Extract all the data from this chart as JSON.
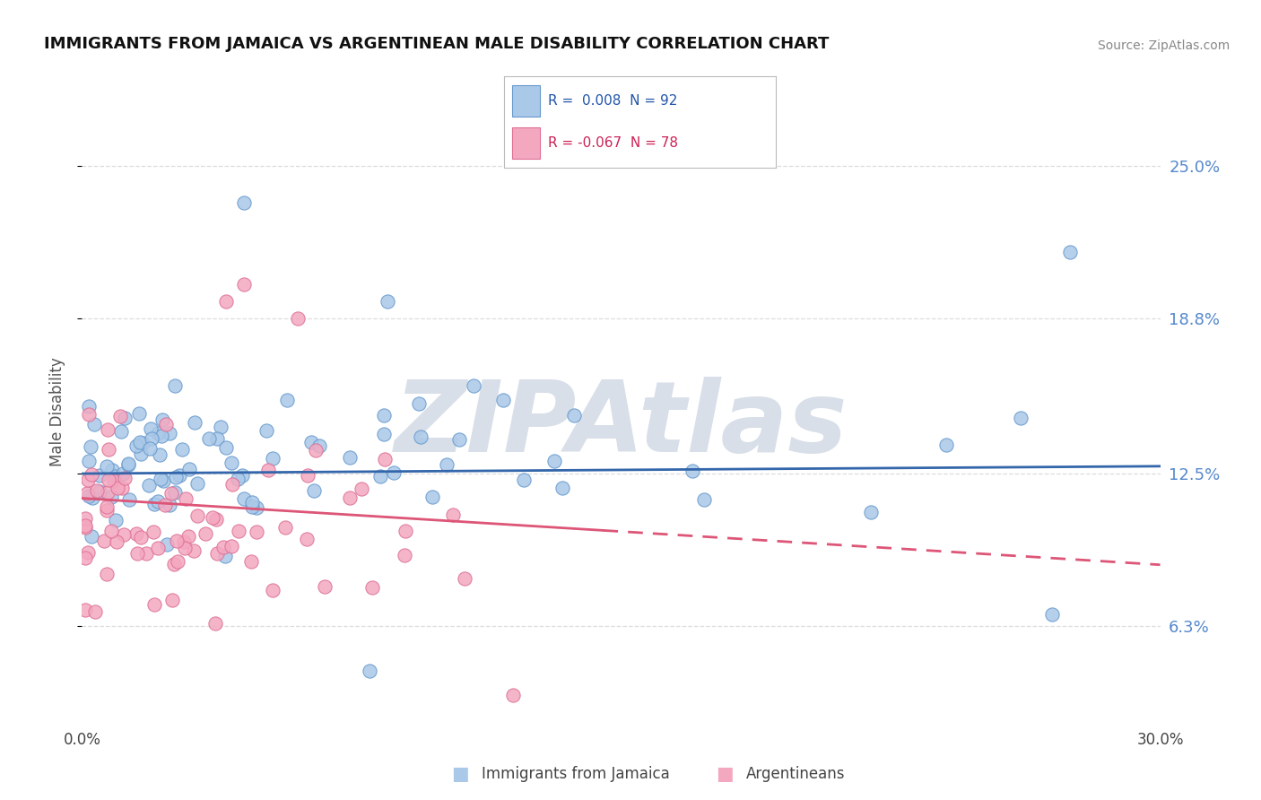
{
  "title": "IMMIGRANTS FROM JAMAICA VS ARGENTINEAN MALE DISABILITY CORRELATION CHART",
  "source": "Source: ZipAtlas.com",
  "ylabel": "Male Disability",
  "y_ticks": [
    6.3,
    12.5,
    18.8,
    25.0
  ],
  "y_tick_labels": [
    "6.3%",
    "12.5%",
    "18.8%",
    "25.0%"
  ],
  "x_min": 0.0,
  "x_max": 30.0,
  "y_min": 2.5,
  "y_max": 27.5,
  "legend_r1": "R =  0.008",
  "legend_n1": "N = 92",
  "legend_r2": "R = -0.067",
  "legend_n2": "N = 78",
  "blue_color": "#aac8e8",
  "blue_edge": "#6699cc",
  "pink_color": "#f4a8c0",
  "pink_edge": "#dd7095",
  "line_blue": "#3366aa",
  "line_pink": "#dd5577",
  "watermark": "ZIPAtlas",
  "watermark_color": "#d8dfe8",
  "blue_line_y_at_0": 12.5,
  "blue_line_y_at_30": 12.8,
  "pink_line_y_at_0": 11.5,
  "pink_line_y_at_14": 10.0,
  "pink_line_y_at_30": 8.8,
  "pink_solid_end_x": 14.5
}
